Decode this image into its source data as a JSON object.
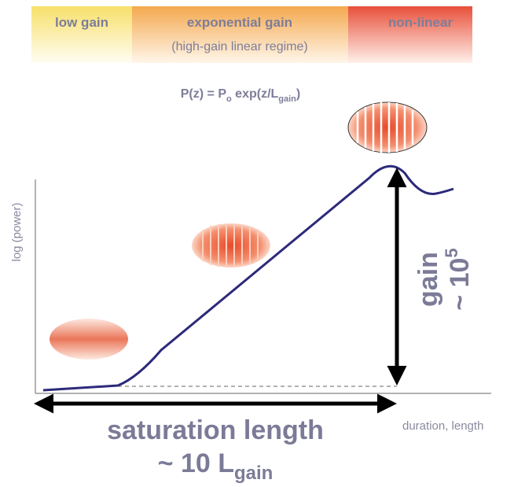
{
  "header": {
    "regimes": [
      {
        "label": "low gain"
      },
      {
        "label": "exponential gain",
        "sublabel": "(high-gain linear regime)"
      },
      {
        "label": "non-linear"
      }
    ]
  },
  "formula": {
    "main": "P(z) = P",
    "sub1": "o",
    "middle": " exp(z/L",
    "sub2": "gain",
    "end": ")"
  },
  "axes": {
    "y_label": "log (power)",
    "x_label": "duration, length"
  },
  "gain": {
    "word": "gain",
    "approx": "~ 10",
    "exponent": "5"
  },
  "saturation": {
    "title": "saturation length",
    "approx": "~ 10 L",
    "sub": "gain"
  }
}
